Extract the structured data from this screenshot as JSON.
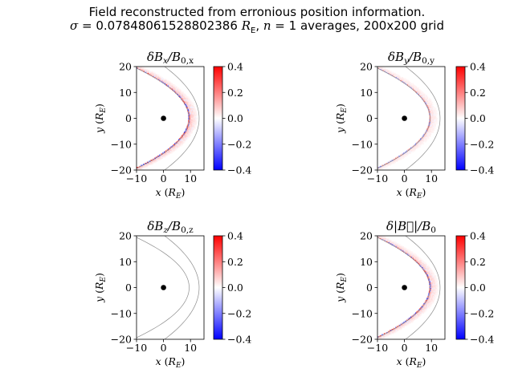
{
  "figure": {
    "title_line1": "Field reconstructed from erronious position information.",
    "sigma_symbol": "σ",
    "sigma_eq": " = ",
    "sigma_value": "0.07848061528802386",
    "sigma_unit_R": "R",
    "sigma_unit_sub": "E",
    "averages_n_symbol": "n",
    "averages_text": " = 1 averages, 200x200 grid",
    "comma": ", "
  },
  "colors": {
    "positive": "#ff0000",
    "negative": "#0000ff",
    "zero": "#ffffff",
    "boundary": "#8c8c8c",
    "earth": "#000000"
  },
  "chart_data": [
    {
      "type": "heatmap",
      "title": "δBx/B0,x",
      "title_main": "δB",
      "title_sub1": "x",
      "title_slash": "/B",
      "title_sub2": "0,x",
      "xlabel": "x (R_E)",
      "ylabel": "y (R_E)",
      "xlim": [
        -10,
        15
      ],
      "ylim": [
        -20,
        20
      ],
      "xticks": [
        "−10",
        "0",
        "10"
      ],
      "yticks": [
        "20",
        "10",
        "0",
        "−10",
        "−20"
      ],
      "colorbar": {
        "range": [
          -0.4,
          0.4
        ],
        "ticks": [
          "0.4",
          "0.2",
          "0.0",
          "−0.2",
          "−0.4"
        ]
      },
      "earth": {
        "x": 0,
        "y": 0
      },
      "amplitude": 1.0,
      "boundaries": [
        {
          "name": "inner",
          "x0": 9.5,
          "k": 0.052
        },
        {
          "name": "outer",
          "x0": 13.2,
          "k": 0.032
        }
      ]
    },
    {
      "type": "heatmap",
      "title": "δBy/B0,y",
      "title_main": "δB",
      "title_sub1": "y",
      "title_slash": "/B",
      "title_sub2": "0,y",
      "xlabel": "x (R_E)",
      "ylabel": "y (R_E)",
      "xlim": [
        -10,
        15
      ],
      "ylim": [
        -20,
        20
      ],
      "xticks": [
        "−10",
        "0",
        "10"
      ],
      "yticks": [
        "20",
        "10",
        "0",
        "−10",
        "−20"
      ],
      "colorbar": {
        "range": [
          -0.4,
          0.4
        ],
        "ticks": [
          "0.4",
          "0.2",
          "0.0",
          "−0.2",
          "−0.4"
        ]
      },
      "earth": {
        "x": 0,
        "y": 0
      },
      "amplitude": 0.55,
      "boundaries": [
        {
          "name": "inner",
          "x0": 9.5,
          "k": 0.052
        },
        {
          "name": "outer",
          "x0": 13.2,
          "k": 0.032
        }
      ]
    },
    {
      "type": "heatmap",
      "title": "δBz/B0,z",
      "title_main": "δB",
      "title_sub1": "z",
      "title_slash": "/B",
      "title_sub2": "0,z",
      "xlabel": "x (R_E)",
      "ylabel": "y (R_E)",
      "xlim": [
        -10,
        15
      ],
      "ylim": [
        -20,
        20
      ],
      "xticks": [
        "−10",
        "0",
        "10"
      ],
      "yticks": [
        "20",
        "10",
        "0",
        "−10",
        "−20"
      ],
      "colorbar": {
        "range": [
          -0.4,
          0.4
        ],
        "ticks": [
          "0.4",
          "0.2",
          "0.0",
          "−0.2",
          "−0.4"
        ]
      },
      "earth": {
        "x": 0,
        "y": 0
      },
      "amplitude": 0.0,
      "boundaries": [
        {
          "name": "inner",
          "x0": 9.5,
          "k": 0.052
        },
        {
          "name": "outer",
          "x0": 13.2,
          "k": 0.032
        }
      ]
    },
    {
      "type": "heatmap",
      "title": "δ|B⃗|/B0",
      "title_main": "δ|B⃗|",
      "title_sub1": "",
      "title_slash": "/B",
      "title_sub2": "0",
      "xlabel": "x (R_E)",
      "ylabel": "y (R_E)",
      "xlim": [
        -10,
        15
      ],
      "ylim": [
        -20,
        20
      ],
      "xticks": [
        "−10",
        "0",
        "10"
      ],
      "yticks": [
        "20",
        "10",
        "0",
        "−10",
        "−20"
      ],
      "colorbar": {
        "range": [
          -0.4,
          0.4
        ],
        "ticks": [
          "0.4",
          "0.2",
          "0.0",
          "−0.2",
          "−0.4"
        ]
      },
      "earth": {
        "x": 0,
        "y": 0
      },
      "amplitude": 0.9,
      "boundaries": [
        {
          "name": "inner",
          "x0": 9.5,
          "k": 0.052
        },
        {
          "name": "outer",
          "x0": 13.2,
          "k": 0.032
        }
      ]
    }
  ]
}
